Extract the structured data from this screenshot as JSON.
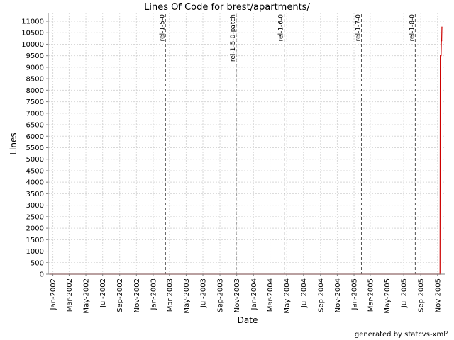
{
  "chart_data": {
    "type": "line",
    "title": "Lines Of Code for brest/apartments/",
    "xlabel": "Date",
    "ylabel": "Lines",
    "ylim": [
      0,
      11000
    ],
    "xlim": [
      "2001-12-15",
      "2005-11-30"
    ],
    "yticks": [
      0,
      500,
      1000,
      1500,
      2000,
      2500,
      3000,
      3500,
      4000,
      4500,
      5000,
      5500,
      6000,
      6500,
      7000,
      7500,
      8000,
      8500,
      9000,
      9500,
      10000,
      10500,
      11000
    ],
    "xticks": [
      {
        "date": "2002-01-01",
        "label": "Jan-2002"
      },
      {
        "date": "2002-03-01",
        "label": "Mar-2002"
      },
      {
        "date": "2002-05-01",
        "label": "May-2002"
      },
      {
        "date": "2002-07-01",
        "label": "Jul-2002"
      },
      {
        "date": "2002-09-01",
        "label": "Sep-2002"
      },
      {
        "date": "2002-11-01",
        "label": "Nov-2002"
      },
      {
        "date": "2003-01-01",
        "label": "Jan-2003"
      },
      {
        "date": "2003-03-01",
        "label": "Mar-2003"
      },
      {
        "date": "2003-05-01",
        "label": "May-2003"
      },
      {
        "date": "2003-07-01",
        "label": "Jul-2003"
      },
      {
        "date": "2003-09-01",
        "label": "Sep-2003"
      },
      {
        "date": "2003-11-01",
        "label": "Nov-2003"
      },
      {
        "date": "2004-01-01",
        "label": "Jan-2004"
      },
      {
        "date": "2004-03-01",
        "label": "Mar-2004"
      },
      {
        "date": "2004-05-01",
        "label": "May-2004"
      },
      {
        "date": "2004-07-01",
        "label": "Jul-2004"
      },
      {
        "date": "2004-09-01",
        "label": "Sep-2004"
      },
      {
        "date": "2004-11-01",
        "label": "Nov-2004"
      },
      {
        "date": "2005-01-01",
        "label": "Jan-2005"
      },
      {
        "date": "2005-03-01",
        "label": "Mar-2005"
      },
      {
        "date": "2005-05-01",
        "label": "May-2005"
      },
      {
        "date": "2005-07-01",
        "label": "Jul-2005"
      },
      {
        "date": "2005-09-01",
        "label": "Sep-2005"
      },
      {
        "date": "2005-11-01",
        "label": "Nov-2005"
      }
    ],
    "markers": [
      {
        "label": "rel-1-5-0",
        "date": "2003-02-15"
      },
      {
        "label": "rel-1-5-0-patch",
        "date": "2003-10-30"
      },
      {
        "label": "rel-1-6-0",
        "date": "2004-04-22"
      },
      {
        "label": "rel-1-7-0",
        "date": "2005-01-28"
      },
      {
        "label": "rel-1-8-0",
        "date": "2005-08-12"
      }
    ],
    "series": [
      {
        "color": "#cc0000",
        "points": [
          {
            "x": "2001-12-20",
            "y": 0
          },
          {
            "x": "2005-11-10",
            "y": 0
          },
          {
            "x": "2005-11-11",
            "y": 9500
          },
          {
            "x": "2005-11-14",
            "y": 9500
          },
          {
            "x": "2005-11-15",
            "y": 10150
          },
          {
            "x": "2005-11-16",
            "y": 10150
          },
          {
            "x": "2005-11-17",
            "y": 10750
          }
        ]
      }
    ],
    "grid": true,
    "colors": {
      "gridline": "#d8d8d8",
      "marker": "#555555",
      "series": "#cc0000"
    }
  },
  "footer": {
    "credit": "generated by statcvs-xml²"
  }
}
